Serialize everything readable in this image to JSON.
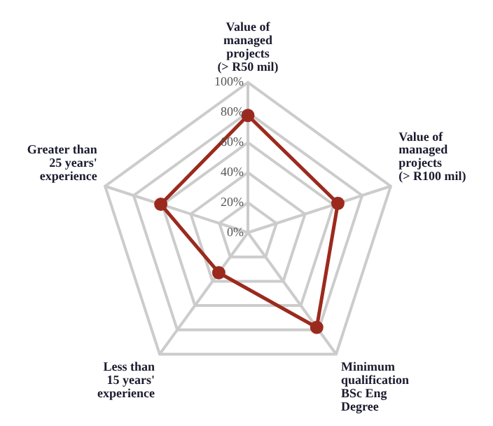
{
  "chart_data": {
    "type": "radar",
    "categories": [
      "Value of\nmanaged\nprojects\n(> R50 mil)",
      "Value of\nmanaged\nprojects\n(> R100 mil)",
      "Minimum\nqualification\nBSc Eng\nDegree",
      "Less than\n15 years'\nexperience",
      "Greater than\n25 years'\nexperience"
    ],
    "series": [
      {
        "color": "#9b2a1e",
        "values": [
          78,
          63,
          78,
          33,
          61
        ]
      }
    ],
    "ylim": [
      0,
      100
    ],
    "yticks": [
      {
        "value": 0,
        "label": "0%"
      },
      {
        "value": 20,
        "label": "20%"
      },
      {
        "value": 40,
        "label": "40%"
      },
      {
        "value": 60,
        "label": "60%"
      },
      {
        "value": 80,
        "label": "80%"
      },
      {
        "value": 100,
        "label": "100%"
      }
    ],
    "marker": "circle",
    "legend": false,
    "grid": true
  }
}
